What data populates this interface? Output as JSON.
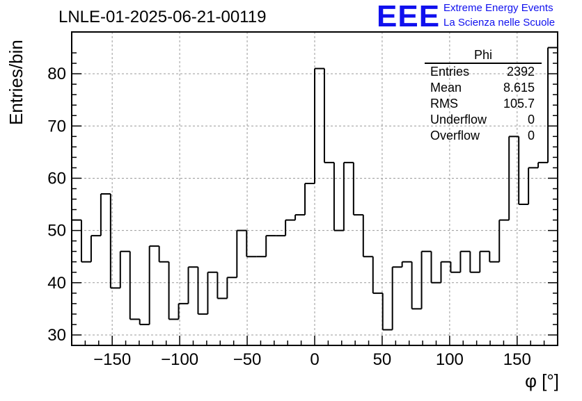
{
  "header": {
    "title": "LNLE-01-2025-06-21-00119",
    "logo_text": "EEE",
    "logo_line1": "Extreme Energy Events",
    "logo_line2": "La Scienza nelle Scuole"
  },
  "stats_box": {
    "name": "Phi",
    "rows": [
      {
        "label": "Entries",
        "value": "2392"
      },
      {
        "label": "Mean",
        "value": "8.615"
      },
      {
        "label": "RMS",
        "value": "105.7"
      },
      {
        "label": "Underflow",
        "value": "0"
      },
      {
        "label": "Overflow",
        "value": "0"
      }
    ]
  },
  "chart_data": {
    "type": "bar",
    "subtype": "step-histogram",
    "title": "LNLE-01-2025-06-21-00119",
    "xlabel": "φ [°]",
    "ylabel": "Entries/bin",
    "xlim": [
      -180,
      180
    ],
    "ylim": [
      28,
      88
    ],
    "bin_width": 7.2,
    "x_ticks": [
      -150,
      -100,
      -50,
      0,
      50,
      100,
      150
    ],
    "x_tick_labels": [
      "−150",
      "−100",
      "−50",
      "0",
      "50",
      "100",
      "150"
    ],
    "y_ticks": [
      30,
      40,
      50,
      60,
      70,
      80
    ],
    "y_tick_labels": [
      "30",
      "40",
      "50",
      "60",
      "70",
      "80"
    ],
    "grid": true,
    "series": [
      {
        "name": "Phi",
        "values": [
          52,
          44,
          49,
          57,
          39,
          46,
          33,
          32,
          47,
          44,
          33,
          36,
          43,
          34,
          42,
          37,
          41,
          50,
          45,
          45,
          49,
          49,
          52,
          53,
          59,
          81,
          63,
          50,
          63,
          53,
          45,
          38,
          31,
          43,
          44,
          35,
          46,
          40,
          44,
          42,
          46,
          42,
          46,
          44,
          52,
          68,
          55,
          62,
          63,
          85
        ]
      }
    ],
    "colors": {
      "line": "#000000",
      "grid": "#999999",
      "axis": "#000000"
    }
  }
}
